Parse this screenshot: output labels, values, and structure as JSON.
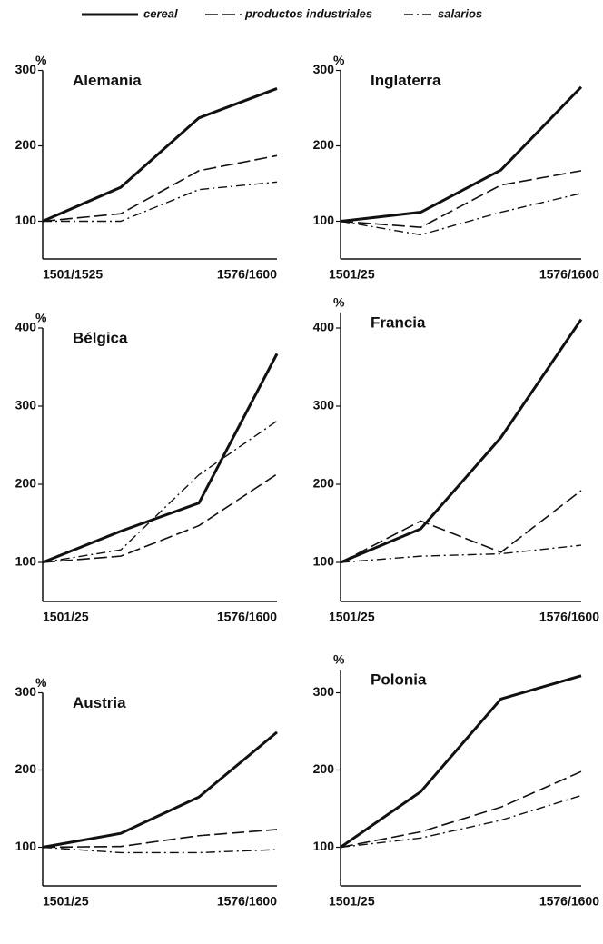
{
  "chart_data": [
    {
      "type": "line",
      "title": "Alemania",
      "ylabel": "%",
      "categories": [
        "1501/1525",
        null,
        null,
        "1576/1600"
      ],
      "ylim": [
        50,
        300
      ],
      "yticks": [
        100,
        200,
        300
      ],
      "series": [
        {
          "name": "cereal",
          "color": "#111111",
          "values": [
            100,
            145,
            237,
            276
          ]
        },
        {
          "name": "productos industriales",
          "color": "#111111",
          "values": [
            100,
            110,
            167,
            187
          ]
        },
        {
          "name": "salarios",
          "color": "#111111",
          "values": [
            100,
            100,
            142,
            152
          ]
        }
      ]
    },
    {
      "type": "line",
      "title": "Inglaterra",
      "ylabel": "%",
      "categories": [
        "1501/25",
        null,
        null,
        "1576/1600"
      ],
      "ylim": [
        50,
        300
      ],
      "yticks": [
        100,
        200,
        300
      ],
      "series": [
        {
          "name": "cereal",
          "color": "#111111",
          "values": [
            100,
            112,
            168,
            278
          ]
        },
        {
          "name": "productos industriales",
          "color": "#111111",
          "values": [
            100,
            92,
            148,
            167
          ]
        },
        {
          "name": "salarios",
          "color": "#111111",
          "values": [
            100,
            82,
            112,
            137
          ]
        }
      ]
    },
    {
      "type": "line",
      "title": "Bélgica",
      "ylabel": "%",
      "categories": [
        "1501/25",
        null,
        null,
        "1576/1600"
      ],
      "ylim": [
        50,
        400
      ],
      "yticks": [
        100,
        200,
        300,
        400
      ],
      "series": [
        {
          "name": "cereal",
          "color": "#111111",
          "values": [
            100,
            140,
            176,
            367
          ]
        },
        {
          "name": "productos industriales",
          "color": "#111111",
          "values": [
            100,
            108,
            147,
            213
          ]
        },
        {
          "name": "salarios",
          "color": "#111111",
          "values": [
            100,
            116,
            212,
            281
          ]
        }
      ]
    },
    {
      "type": "line",
      "title": "Francia",
      "ylabel": "%",
      "categories": [
        "1501/25",
        null,
        null,
        "1576/1600"
      ],
      "ylim": [
        50,
        420
      ],
      "yticks": [
        100,
        200,
        300,
        400
      ],
      "series": [
        {
          "name": "cereal",
          "color": "#111111",
          "values": [
            100,
            143,
            260,
            411
          ]
        },
        {
          "name": "productos industriales",
          "color": "#111111",
          "values": [
            100,
            153,
            113,
            192
          ]
        },
        {
          "name": "salarios",
          "color": "#111111",
          "values": [
            100,
            108,
            111,
            122
          ]
        }
      ]
    },
    {
      "type": "line",
      "title": "Austria",
      "ylabel": "%",
      "categories": [
        "1501/25",
        null,
        null,
        "1576/1600"
      ],
      "ylim": [
        50,
        300
      ],
      "yticks": [
        100,
        200,
        300
      ],
      "series": [
        {
          "name": "cereal",
          "color": "#111111",
          "values": [
            100,
            118,
            165,
            249
          ]
        },
        {
          "name": "productos industriales",
          "color": "#111111",
          "values": [
            100,
            101,
            115,
            123
          ]
        },
        {
          "name": "salarios",
          "color": "#111111",
          "values": [
            100,
            93,
            93,
            97
          ]
        }
      ]
    },
    {
      "type": "line",
      "title": "Polonia",
      "ylabel": "%",
      "categories": [
        "1501/25",
        null,
        null,
        "1576/1600"
      ],
      "ylim": [
        50,
        330
      ],
      "yticks": [
        100,
        200,
        300
      ],
      "series": [
        {
          "name": "cereal",
          "color": "#111111",
          "values": [
            100,
            172,
            292,
            322
          ]
        },
        {
          "name": "productos industriales",
          "color": "#111111",
          "values": [
            100,
            120,
            152,
            198
          ]
        },
        {
          "name": "salarios",
          "color": "#111111",
          "values": [
            100,
            112,
            135,
            167
          ]
        }
      ]
    }
  ]
}
